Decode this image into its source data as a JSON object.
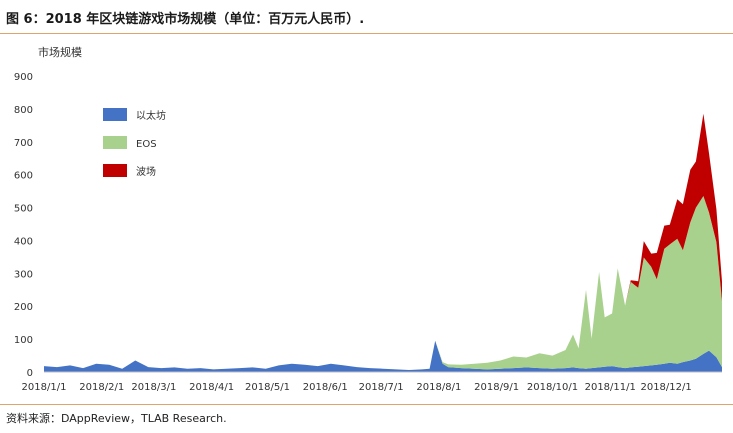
{
  "header": {
    "title": "图 6：2018 年区块链游戏市场规模（单位：百万元人民币）."
  },
  "footer": {
    "source": "资料来源：DAppReview，TLAB Research."
  },
  "chart_data": {
    "type": "area",
    "stacked": true,
    "ylabel": "市场规模",
    "ylim": [
      0,
      900
    ],
    "yticks": [
      0,
      100,
      200,
      300,
      400,
      500,
      600,
      700,
      800,
      900
    ],
    "x_tick_labels": [
      "2018/1/1",
      "2018/2/1",
      "2018/3/1",
      "2018/4/1",
      "2018/5/1",
      "2018/6/1",
      "2018/7/1",
      "2018/8/1",
      "2018/9/1",
      "2018/10/1",
      "2018/11/1",
      "2018/12/1"
    ],
    "legend_position": "top-left",
    "x": [
      "2018/1/1",
      "2018/1/8",
      "2018/1/15",
      "2018/1/22",
      "2018/1/29",
      "2018/2/5",
      "2018/2/12",
      "2018/2/19",
      "2018/2/26",
      "2018/3/5",
      "2018/3/12",
      "2018/3/19",
      "2018/3/26",
      "2018/4/2",
      "2018/4/9",
      "2018/4/16",
      "2018/4/23",
      "2018/4/30",
      "2018/5/7",
      "2018/5/14",
      "2018/5/21",
      "2018/5/28",
      "2018/6/4",
      "2018/6/11",
      "2018/6/18",
      "2018/6/25",
      "2018/7/2",
      "2018/7/9",
      "2018/7/16",
      "2018/7/23",
      "2018/7/27",
      "2018/7/30",
      "2018/8/3",
      "2018/8/6",
      "2018/8/13",
      "2018/8/20",
      "2018/8/27",
      "2018/9/3",
      "2018/9/10",
      "2018/9/17",
      "2018/9/24",
      "2018/10/1",
      "2018/10/8",
      "2018/10/12",
      "2018/10/15",
      "2018/10/19",
      "2018/10/22",
      "2018/10/26",
      "2018/10/29",
      "2018/11/2",
      "2018/11/5",
      "2018/11/9",
      "2018/11/12",
      "2018/11/16",
      "2018/11/19",
      "2018/11/23",
      "2018/11/26",
      "2018/11/30",
      "2018/12/3",
      "2018/12/7",
      "2018/12/10",
      "2018/12/14",
      "2018/12/17",
      "2018/12/21",
      "2018/12/24",
      "2018/12/28",
      "2018/12/31"
    ],
    "series": [
      {
        "name": "以太坊",
        "color": "#4472c4",
        "values": [
          18,
          15,
          20,
          12,
          25,
          22,
          10,
          35,
          15,
          12,
          14,
          10,
          12,
          8,
          10,
          12,
          14,
          10,
          20,
          25,
          22,
          18,
          25,
          20,
          15,
          12,
          10,
          8,
          6,
          8,
          10,
          95,
          25,
          15,
          12,
          10,
          8,
          10,
          12,
          14,
          12,
          10,
          12,
          14,
          12,
          10,
          12,
          14,
          16,
          18,
          15,
          12,
          14,
          16,
          18,
          20,
          22,
          25,
          28,
          25,
          30,
          35,
          40,
          55,
          65,
          45,
          15
        ]
      },
      {
        "name": "EOS",
        "color": "#a9d18e",
        "values": [
          0,
          0,
          0,
          0,
          0,
          0,
          0,
          0,
          0,
          0,
          0,
          0,
          0,
          0,
          0,
          0,
          0,
          0,
          0,
          0,
          0,
          0,
          0,
          0,
          0,
          0,
          0,
          0,
          0,
          0,
          0,
          0,
          5,
          8,
          10,
          15,
          20,
          25,
          35,
          30,
          45,
          40,
          55,
          100,
          60,
          240,
          90,
          290,
          150,
          160,
          300,
          190,
          260,
          240,
          330,
          300,
          260,
          350,
          360,
          380,
          340,
          420,
          460,
          480,
          420,
          350,
          200
        ]
      },
      {
        "name": "波场",
        "color": "#c00000",
        "values": [
          0,
          0,
          0,
          0,
          0,
          0,
          0,
          0,
          0,
          0,
          0,
          0,
          0,
          0,
          0,
          0,
          0,
          0,
          0,
          0,
          0,
          0,
          0,
          0,
          0,
          0,
          0,
          0,
          0,
          0,
          0,
          0,
          0,
          0,
          0,
          0,
          0,
          0,
          0,
          0,
          0,
          0,
          0,
          0,
          0,
          0,
          0,
          0,
          0,
          0,
          0,
          0,
          5,
          20,
          50,
          40,
          80,
          70,
          60,
          120,
          140,
          160,
          140,
          250,
          180,
          100,
          60
        ]
      }
    ]
  }
}
